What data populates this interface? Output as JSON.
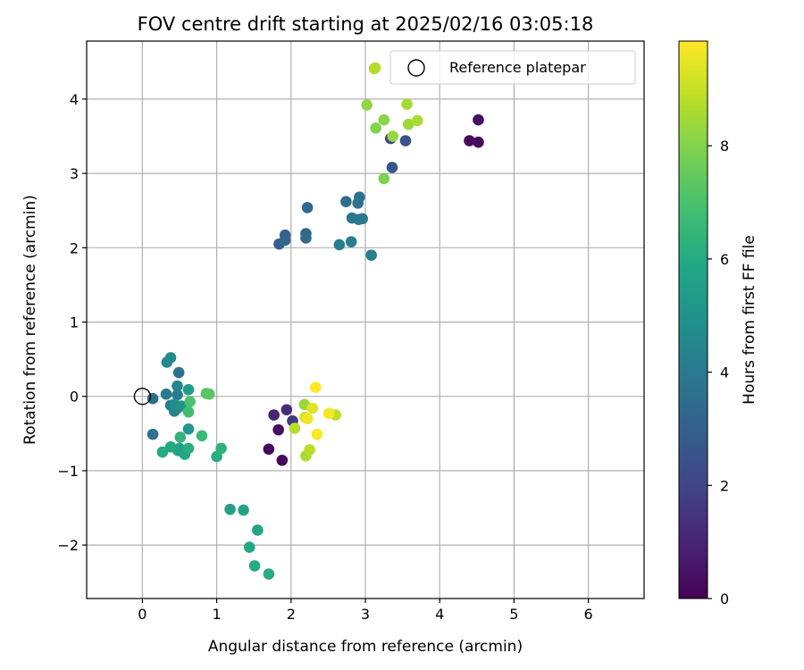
{
  "chart_data": {
    "type": "scatter",
    "title": "FOV centre drift starting at 2025/02/16 03:05:18",
    "xlabel": "Angular distance from reference (arcmin)",
    "ylabel": "Rotation from reference (arcmin)",
    "xlim": [
      -0.75,
      6.75
    ],
    "ylim": [
      -2.72,
      4.78
    ],
    "xticks": [
      0,
      1,
      2,
      3,
      4,
      5,
      6
    ],
    "yticks": [
      -2,
      -1,
      0,
      1,
      2,
      3,
      4
    ],
    "grid": true,
    "legend": {
      "placement": "top-right",
      "reference_label": "Reference platepar"
    },
    "reference_point": {
      "x": 0,
      "y": 0
    },
    "colorbar": {
      "label": "Hours from first FF file",
      "colormap": "viridis",
      "range": [
        0,
        9.85
      ],
      "ticks": [
        0,
        2,
        4,
        6,
        8
      ]
    },
    "points": [
      {
        "x": 4.4,
        "y": 3.44,
        "c": 0.2
      },
      {
        "x": 4.52,
        "y": 3.42,
        "c": 0.3
      },
      {
        "x": 4.52,
        "y": 3.72,
        "c": 0.4
      },
      {
        "x": 1.7,
        "y": -0.71,
        "c": 0.2
      },
      {
        "x": 1.88,
        "y": -0.86,
        "c": 0.3
      },
      {
        "x": 1.83,
        "y": -0.45,
        "c": 0.4
      },
      {
        "x": 1.77,
        "y": -0.25,
        "c": 1.0
      },
      {
        "x": 1.94,
        "y": -0.18,
        "c": 1.3
      },
      {
        "x": 2.02,
        "y": -0.33,
        "c": 1.6
      },
      {
        "x": 3.34,
        "y": 3.47,
        "c": 2.2
      },
      {
        "x": 3.54,
        "y": 3.44,
        "c": 2.4
      },
      {
        "x": 3.36,
        "y": 3.08,
        "c": 2.6
      },
      {
        "x": 1.84,
        "y": 2.05,
        "c": 3.0
      },
      {
        "x": 1.92,
        "y": 2.17,
        "c": 3.1
      },
      {
        "x": 1.92,
        "y": 2.1,
        "c": 3.2
      },
      {
        "x": 2.2,
        "y": 2.19,
        "c": 3.3
      },
      {
        "x": 2.2,
        "y": 2.13,
        "c": 3.4
      },
      {
        "x": 2.22,
        "y": 2.54,
        "c": 3.4
      },
      {
        "x": 2.74,
        "y": 2.62,
        "c": 3.6
      },
      {
        "x": 2.9,
        "y": 2.6,
        "c": 3.7
      },
      {
        "x": 2.92,
        "y": 2.68,
        "c": 3.8
      },
      {
        "x": 2.82,
        "y": 2.4,
        "c": 3.9
      },
      {
        "x": 2.91,
        "y": 2.38,
        "c": 3.9
      },
      {
        "x": 2.96,
        "y": 2.39,
        "c": 4.0
      },
      {
        "x": 2.65,
        "y": 2.04,
        "c": 4.1
      },
      {
        "x": 2.81,
        "y": 2.08,
        "c": 4.2
      },
      {
        "x": 3.08,
        "y": 1.9,
        "c": 4.3
      },
      {
        "x": 0.14,
        "y": -0.03,
        "c": 3.6
      },
      {
        "x": 0.14,
        "y": -0.51,
        "c": 3.7
      },
      {
        "x": 0.49,
        "y": 0.32,
        "c": 3.8
      },
      {
        "x": 0.32,
        "y": 0.03,
        "c": 4.0
      },
      {
        "x": 0.47,
        "y": 0.02,
        "c": 4.1
      },
      {
        "x": 0.38,
        "y": -0.12,
        "c": 4.2
      },
      {
        "x": 0.46,
        "y": -0.17,
        "c": 4.3
      },
      {
        "x": 0.43,
        "y": -0.2,
        "c": 4.4
      },
      {
        "x": 0.47,
        "y": 0.14,
        "c": 4.5
      },
      {
        "x": 0.33,
        "y": 0.46,
        "c": 4.6
      },
      {
        "x": 0.38,
        "y": 0.52,
        "c": 4.7
      },
      {
        "x": 0.43,
        "y": -0.11,
        "c": 4.8
      },
      {
        "x": 0.52,
        "y": -0.13,
        "c": 5.0
      },
      {
        "x": 0.62,
        "y": -0.44,
        "c": 5.2
      },
      {
        "x": 0.62,
        "y": 0.09,
        "c": 5.3
      },
      {
        "x": 0.5,
        "y": -0.7,
        "c": 5.6
      },
      {
        "x": 0.48,
        "y": -0.73,
        "c": 5.7
      },
      {
        "x": 0.57,
        "y": -0.78,
        "c": 5.8
      },
      {
        "x": 0.38,
        "y": -0.68,
        "c": 5.9
      },
      {
        "x": 0.27,
        "y": -0.75,
        "c": 6.0
      },
      {
        "x": 0.62,
        "y": -0.7,
        "c": 6.1
      },
      {
        "x": 1.0,
        "y": -0.81,
        "c": 6.1
      },
      {
        "x": 1.06,
        "y": -0.7,
        "c": 6.3
      },
      {
        "x": 0.51,
        "y": -0.55,
        "c": 6.4
      },
      {
        "x": 0.8,
        "y": -0.53,
        "c": 6.6
      },
      {
        "x": 0.62,
        "y": -0.21,
        "c": 6.8
      },
      {
        "x": 0.64,
        "y": -0.07,
        "c": 7.0
      },
      {
        "x": 0.86,
        "y": 0.04,
        "c": 7.2
      },
      {
        "x": 0.9,
        "y": 0.03,
        "c": 7.3
      },
      {
        "x": 1.18,
        "y": -1.52,
        "c": 5.6
      },
      {
        "x": 1.36,
        "y": -1.53,
        "c": 5.7
      },
      {
        "x": 1.55,
        "y": -1.8,
        "c": 5.8
      },
      {
        "x": 1.44,
        "y": -2.03,
        "c": 5.9
      },
      {
        "x": 1.51,
        "y": -2.28,
        "c": 6.0
      },
      {
        "x": 1.7,
        "y": -2.39,
        "c": 6.1
      },
      {
        "x": 3.25,
        "y": 2.93,
        "c": 7.9
      },
      {
        "x": 3.14,
        "y": 3.61,
        "c": 8.0
      },
      {
        "x": 3.25,
        "y": 3.72,
        "c": 8.1
      },
      {
        "x": 3.02,
        "y": 3.92,
        "c": 8.2
      },
      {
        "x": 3.37,
        "y": 3.5,
        "c": 8.3
      },
      {
        "x": 3.58,
        "y": 3.66,
        "c": 8.4
      },
      {
        "x": 3.56,
        "y": 3.93,
        "c": 8.5
      },
      {
        "x": 3.7,
        "y": 3.71,
        "c": 8.6
      },
      {
        "x": 3.12,
        "y": 4.41,
        "c": 8.7
      },
      {
        "x": 2.18,
        "y": -0.11,
        "c": 8.4
      },
      {
        "x": 2.2,
        "y": -0.8,
        "c": 8.6
      },
      {
        "x": 2.25,
        "y": -0.72,
        "c": 8.8
      },
      {
        "x": 2.05,
        "y": -0.43,
        "c": 8.8
      },
      {
        "x": 2.6,
        "y": -0.25,
        "c": 8.9
      },
      {
        "x": 2.19,
        "y": -0.28,
        "c": 9.1
      },
      {
        "x": 2.29,
        "y": -0.16,
        "c": 9.4
      },
      {
        "x": 2.22,
        "y": -0.3,
        "c": 9.6
      },
      {
        "x": 2.51,
        "y": -0.23,
        "c": 9.7
      },
      {
        "x": 2.35,
        "y": -0.51,
        "c": 9.8
      },
      {
        "x": 2.33,
        "y": 0.12,
        "c": 9.85
      }
    ]
  }
}
